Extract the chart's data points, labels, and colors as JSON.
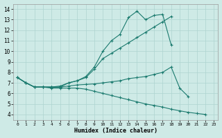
{
  "title": "",
  "xlabel": "Humidex (Indice chaleur)",
  "ylabel": "",
  "bg_color": "#ceeae6",
  "grid_color": "#aed4d0",
  "line_color": "#1a7a6e",
  "xlim": [
    -0.5,
    23.5
  ],
  "ylim": [
    3.5,
    14.5
  ],
  "xticks": [
    0,
    1,
    2,
    3,
    4,
    5,
    6,
    7,
    8,
    9,
    10,
    11,
    12,
    13,
    14,
    15,
    16,
    17,
    18,
    19,
    20,
    21,
    22,
    23
  ],
  "yticks": [
    4,
    5,
    6,
    7,
    8,
    9,
    10,
    11,
    12,
    13,
    14
  ],
  "line1_x": [
    0,
    1,
    2,
    3,
    4,
    5,
    6,
    7,
    8,
    9,
    10,
    11,
    12,
    13,
    14,
    15,
    16,
    17,
    18
  ],
  "line1_y": [
    7.5,
    7.0,
    6.6,
    6.6,
    6.6,
    6.6,
    7.0,
    7.2,
    7.6,
    8.5,
    10.0,
    11.0,
    11.6,
    13.2,
    13.8,
    13.0,
    13.4,
    13.5,
    10.6
  ],
  "line2_x": [
    0,
    1,
    2,
    3,
    4,
    5,
    6,
    7,
    8,
    9,
    10,
    11,
    12,
    13,
    14,
    15,
    16,
    17,
    18
  ],
  "line2_y": [
    7.5,
    7.0,
    6.6,
    6.6,
    6.6,
    6.7,
    7.0,
    7.2,
    7.5,
    8.3,
    9.3,
    9.8,
    10.3,
    10.8,
    11.3,
    11.8,
    12.3,
    12.8,
    13.3
  ],
  "line3_x": [
    0,
    1,
    2,
    3,
    4,
    5,
    6,
    7,
    8,
    9,
    10,
    11,
    12,
    13,
    14,
    15,
    16,
    17,
    18,
    19,
    20
  ],
  "line3_y": [
    7.5,
    7.0,
    6.6,
    6.6,
    6.6,
    6.6,
    6.7,
    6.8,
    6.85,
    6.9,
    7.0,
    7.1,
    7.2,
    7.4,
    7.5,
    7.6,
    7.8,
    8.0,
    8.5,
    6.5,
    5.7
  ],
  "line4_x": [
    0,
    1,
    2,
    3,
    4,
    5,
    6,
    7,
    8,
    9,
    10,
    11,
    12,
    13,
    14,
    15,
    16,
    17,
    18,
    19,
    20,
    21,
    22
  ],
  "line4_y": [
    7.5,
    7.0,
    6.6,
    6.6,
    6.5,
    6.5,
    6.5,
    6.5,
    6.4,
    6.2,
    6.0,
    5.8,
    5.6,
    5.4,
    5.2,
    5.0,
    4.85,
    4.7,
    4.5,
    4.35,
    4.2,
    4.1,
    4.0
  ]
}
